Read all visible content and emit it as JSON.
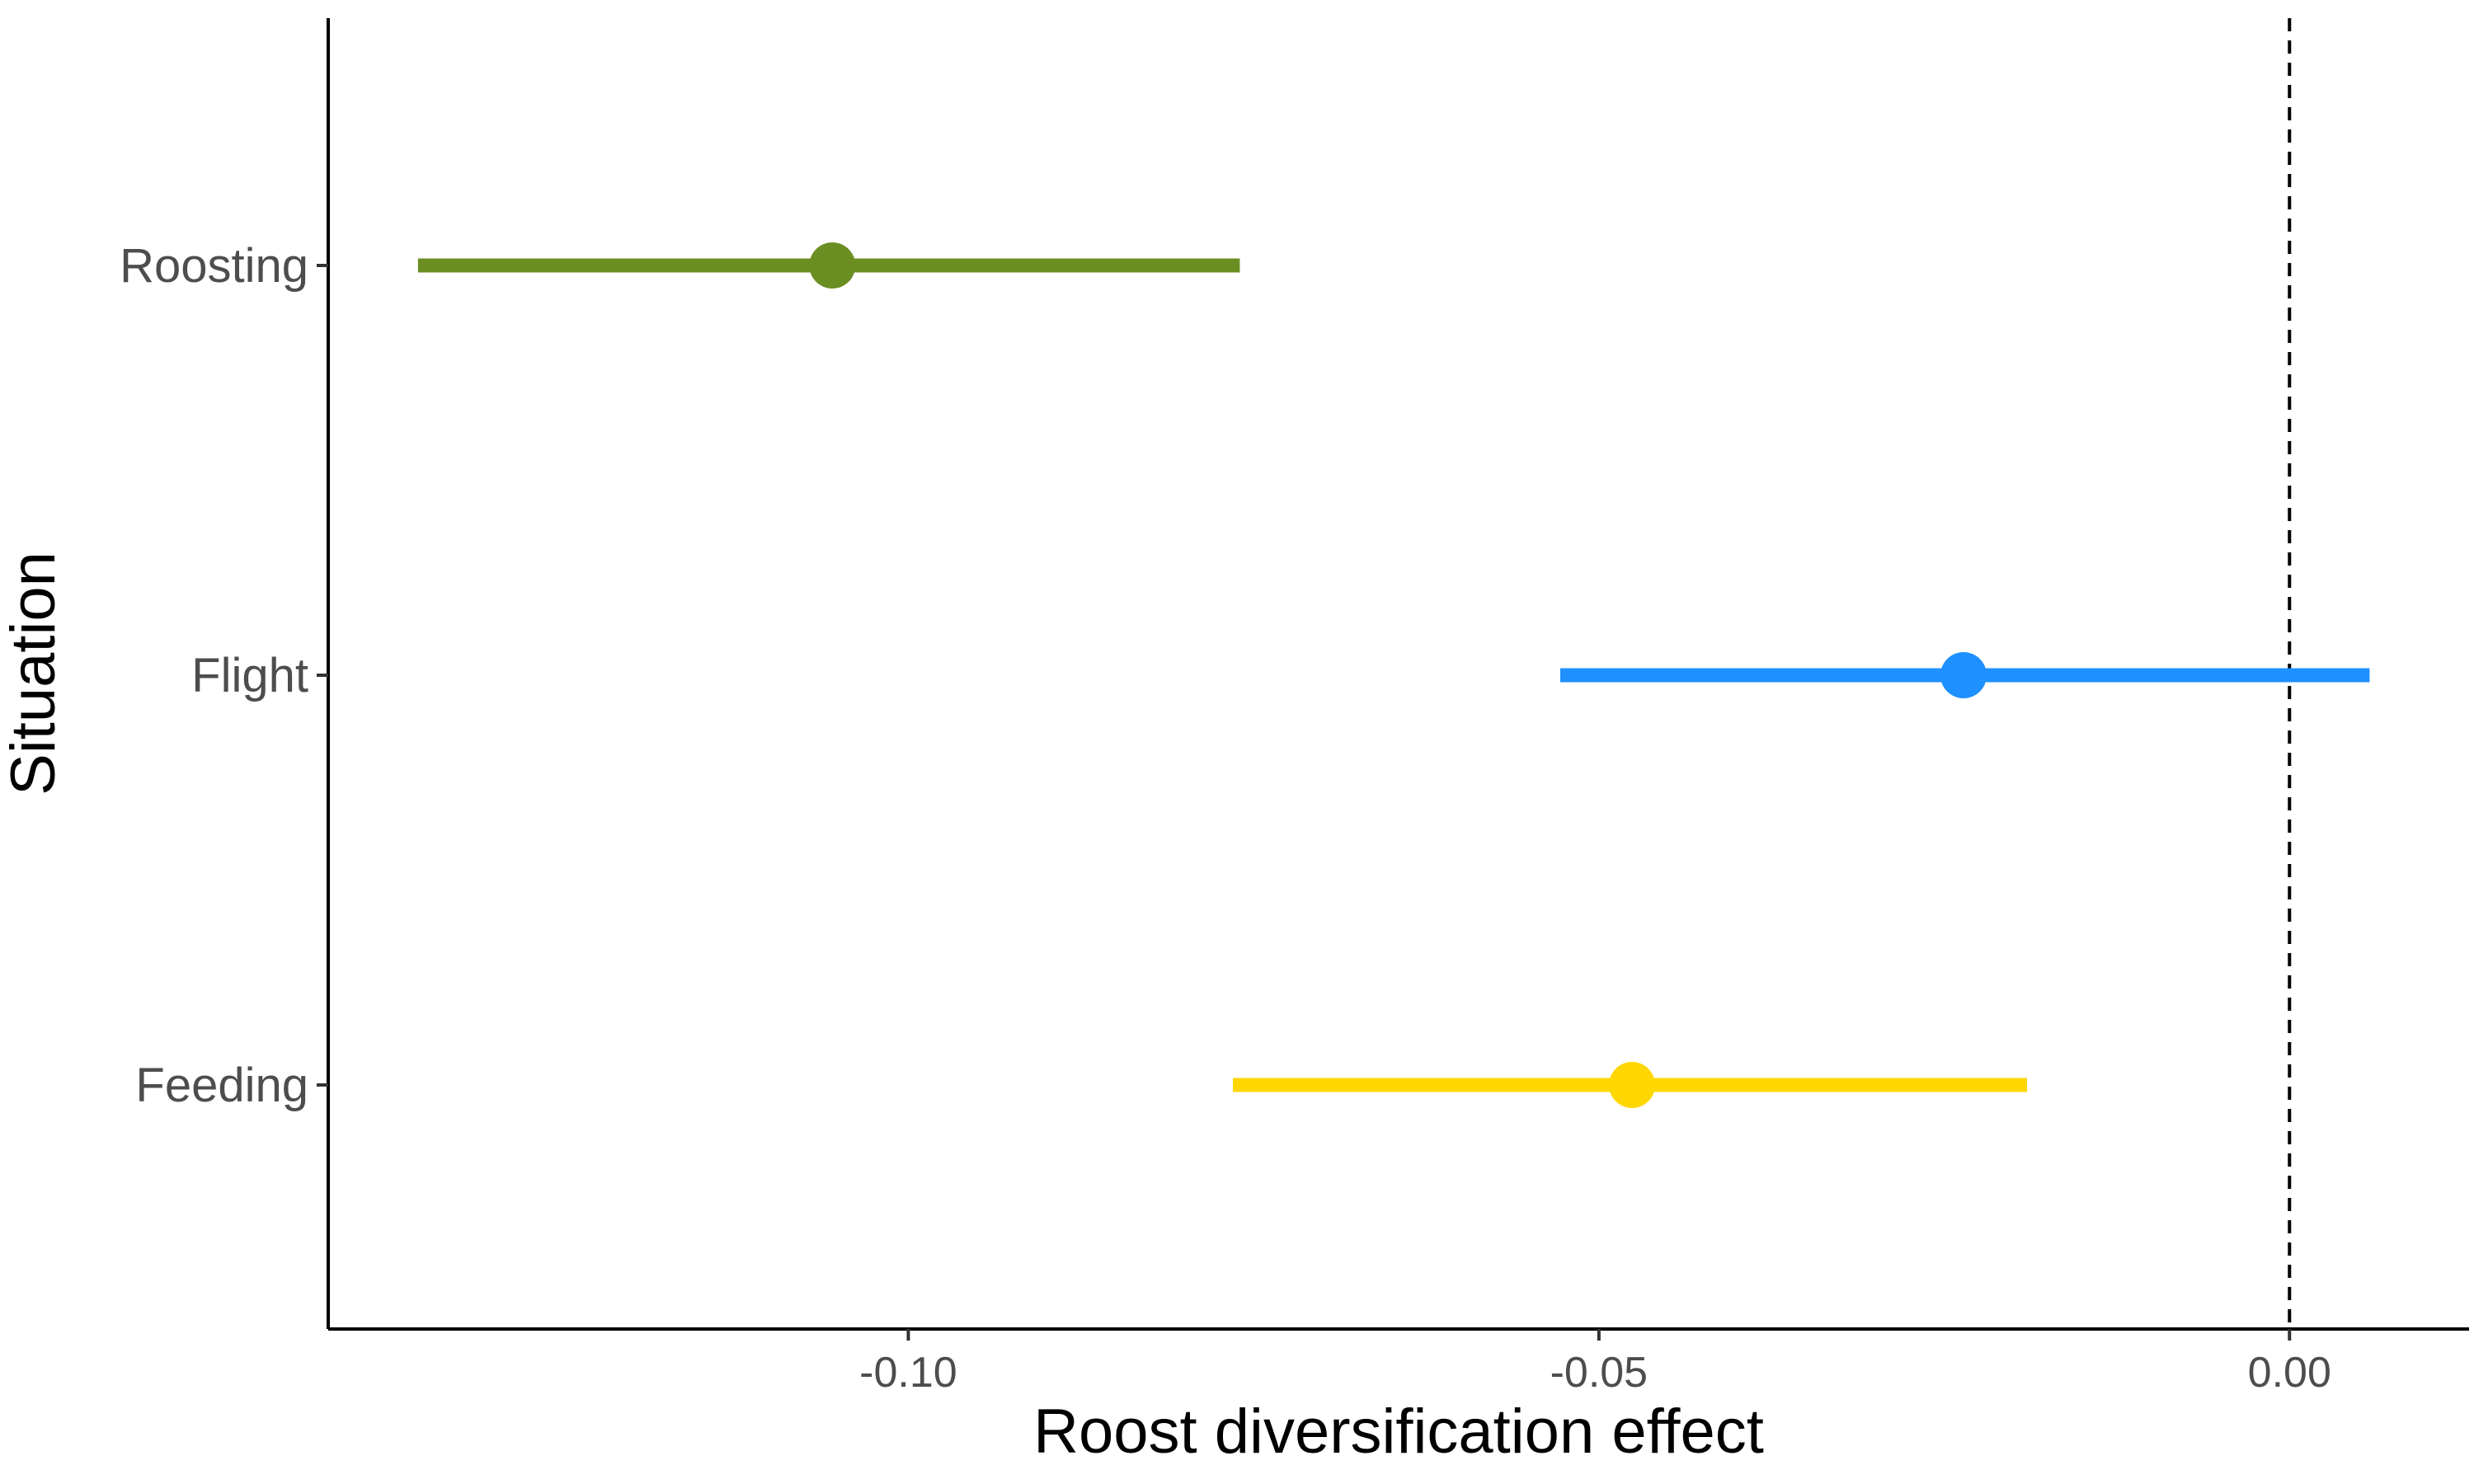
{
  "chart_data": {
    "type": "errorbar",
    "title": "",
    "xlabel": "Roost diversification effect",
    "ylabel": "Situation",
    "xlim": [
      -0.142,
      0.013
    ],
    "x_ticks": [
      -0.1,
      -0.05,
      0.0
    ],
    "x_tick_labels": [
      "-0.10",
      "-0.05",
      "0.00"
    ],
    "reference_line": {
      "x": 0.0,
      "style": "dashed",
      "color": "#000000"
    },
    "grid": false,
    "legend": "none",
    "categories": [
      "Roosting",
      "Flight",
      "Feeding"
    ],
    "series": [
      {
        "category": "Roosting",
        "estimate": -0.1055,
        "lower": -0.1355,
        "upper": -0.076,
        "color": "#6B8E23"
      },
      {
        "category": "Flight",
        "estimate": -0.0236,
        "lower": -0.0528,
        "upper": 0.0058,
        "color": "#1E90FF"
      },
      {
        "category": "Feeding",
        "estimate": -0.0476,
        "lower": -0.0765,
        "upper": -0.019,
        "color": "#FFD700"
      }
    ]
  }
}
